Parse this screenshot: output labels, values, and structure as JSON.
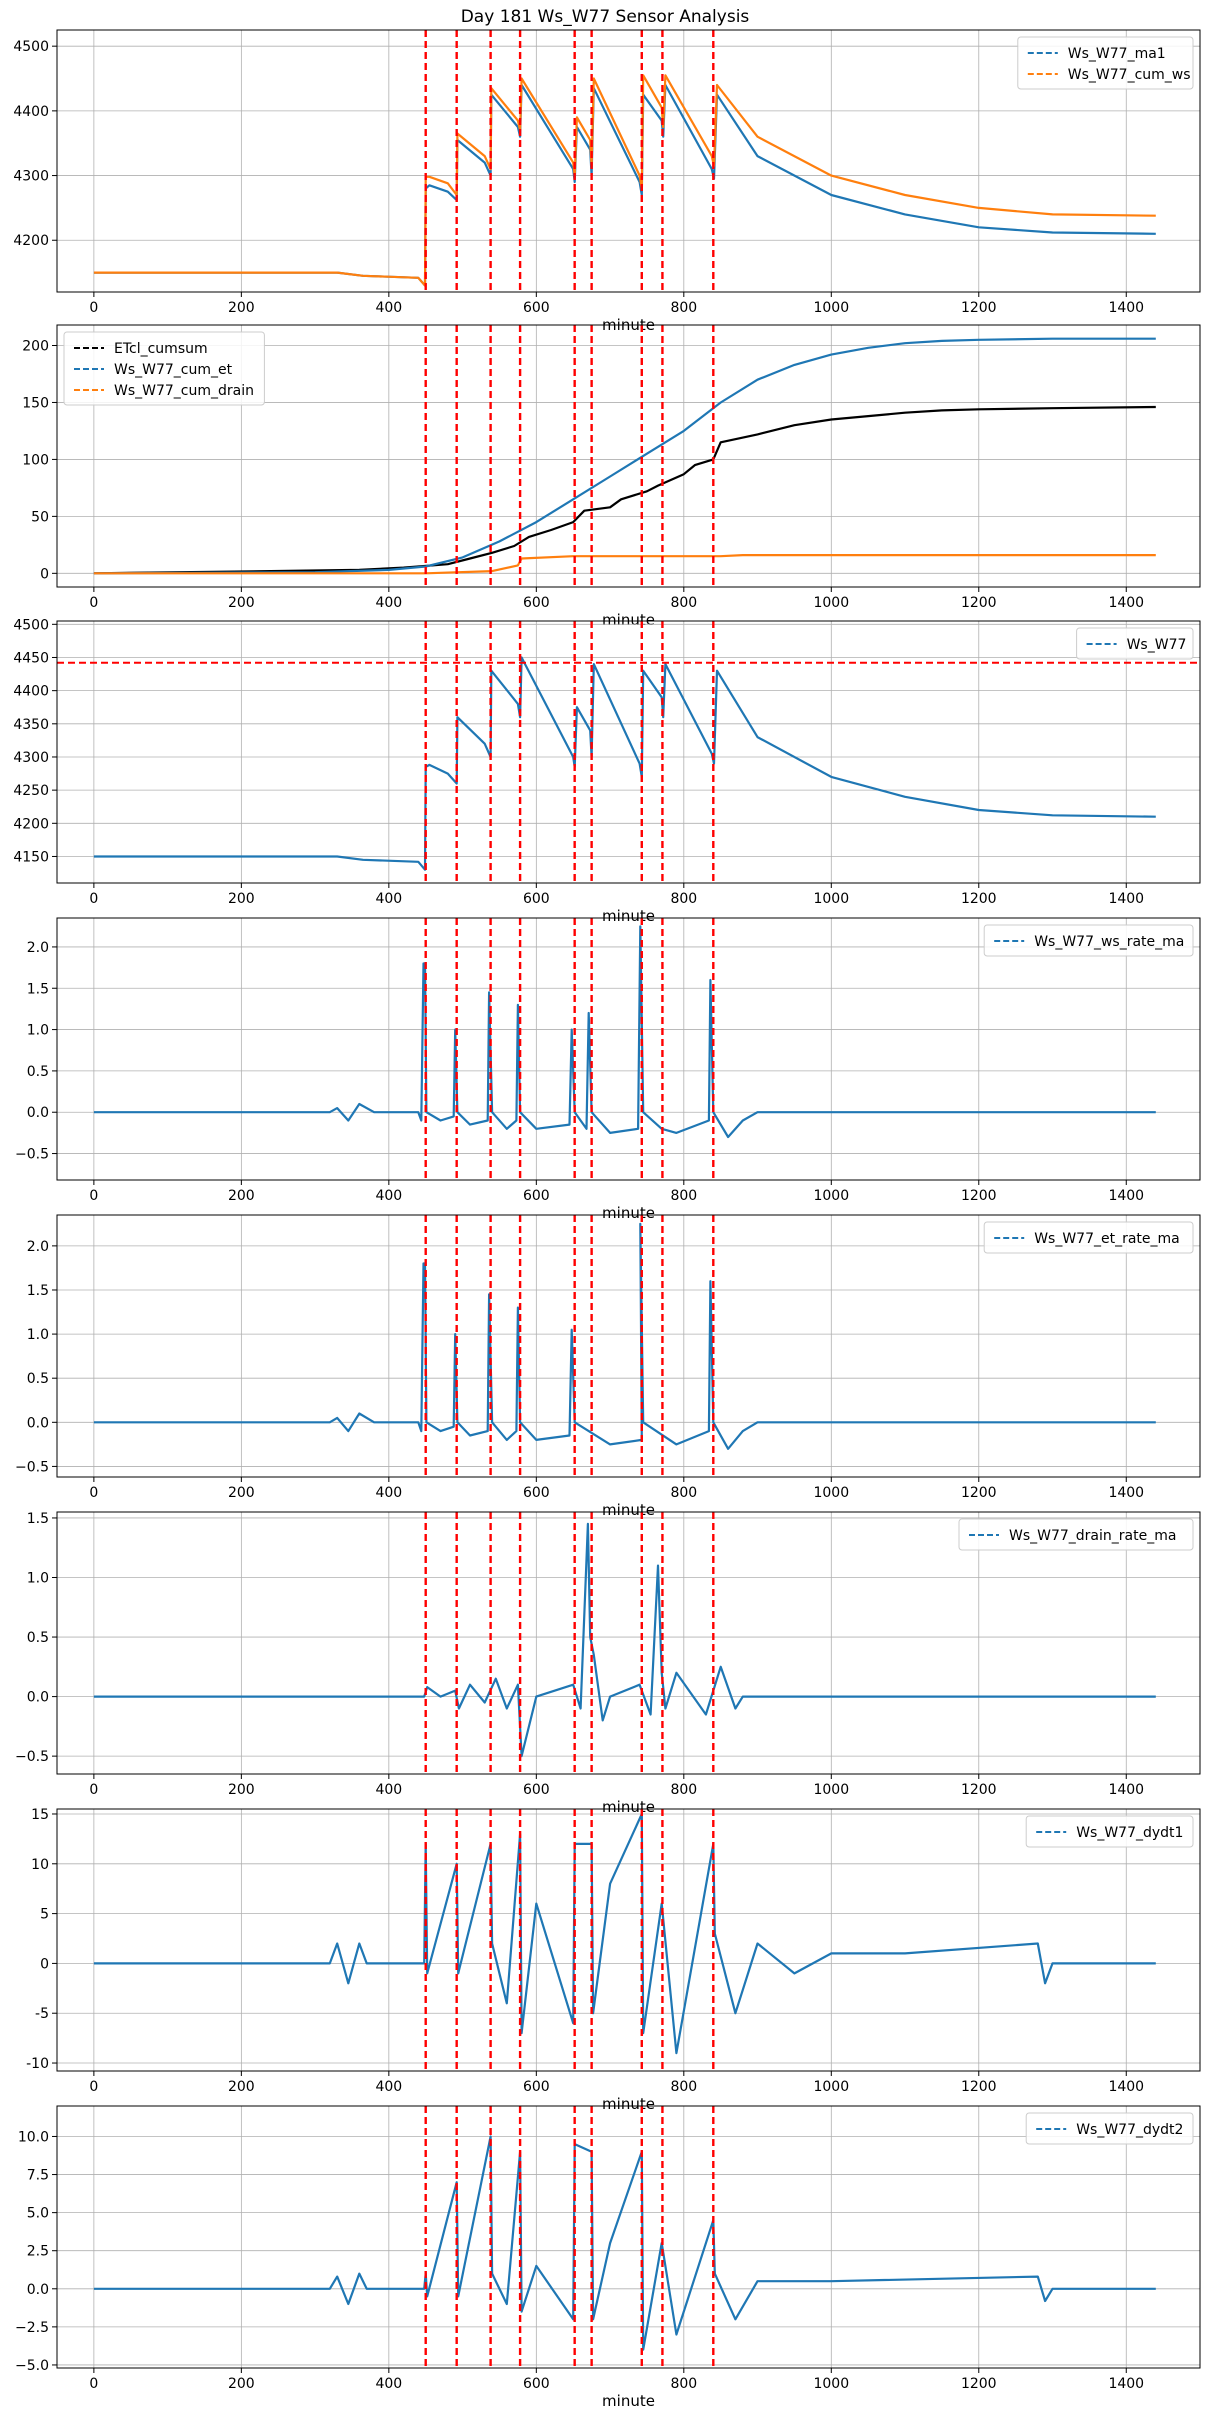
{
  "title": "Day 181 Ws_W77 Sensor Analysis",
  "colors": {
    "blue": "#1f77b4",
    "orange": "#ff7f0e",
    "black": "#000000",
    "red": "#ff0000",
    "grid": "#b0b0b0"
  },
  "chart_data": [
    {
      "type": "line",
      "title": "Day 181 Ws_W77 Sensor Analysis",
      "xlabel": "minute",
      "xlim": [
        -50,
        1500
      ],
      "xticks": [
        0,
        200,
        400,
        600,
        800,
        1000,
        1200,
        1400
      ],
      "ylim": [
        4120,
        4525
      ],
      "yticks": [
        4200,
        4300,
        4400,
        4500
      ],
      "legend": "top-right",
      "vlines": [
        450,
        492,
        538,
        578,
        652,
        675,
        743,
        771,
        840
      ],
      "series": [
        {
          "name": "Ws_W77_ma1",
          "color": "blue",
          "x": [
            0,
            330,
            365,
            440,
            449,
            450,
            455,
            480,
            492,
            493,
            530,
            538,
            539,
            575,
            578,
            580,
            650,
            652,
            655,
            673,
            675,
            678,
            740,
            743,
            745,
            770,
            772,
            775,
            838,
            841,
            845,
            900,
            1000,
            1100,
            1200,
            1300,
            1440
          ],
          "y": [
            4150,
            4150,
            4145,
            4142,
            4130,
            4280,
            4285,
            4275,
            4262,
            4355,
            4320,
            4300,
            4425,
            4375,
            4360,
            4440,
            4310,
            4290,
            4375,
            4340,
            4300,
            4435,
            4290,
            4270,
            4425,
            4385,
            4360,
            4440,
            4310,
            4295,
            4425,
            4330,
            4270,
            4240,
            4220,
            4212,
            4210
          ]
        },
        {
          "name": "Ws_W77_cum_ws",
          "color": "orange",
          "x": [
            0,
            330,
            365,
            440,
            449,
            450,
            455,
            480,
            492,
            493,
            530,
            538,
            539,
            575,
            578,
            580,
            650,
            652,
            655,
            673,
            675,
            678,
            740,
            743,
            745,
            770,
            772,
            775,
            838,
            841,
            845,
            900,
            1000,
            1100,
            1200,
            1300,
            1440
          ],
          "y": [
            4150,
            4150,
            4145,
            4142,
            4130,
            4298,
            4298,
            4288,
            4270,
            4365,
            4330,
            4310,
            4435,
            4385,
            4370,
            4450,
            4320,
            4300,
            4390,
            4355,
            4315,
            4450,
            4300,
            4280,
            4455,
            4405,
            4375,
            4455,
            4330,
            4315,
            4440,
            4360,
            4300,
            4270,
            4250,
            4240,
            4238
          ]
        }
      ]
    },
    {
      "type": "line",
      "xlabel": "minute",
      "xlim": [
        -50,
        1500
      ],
      "xticks": [
        0,
        200,
        400,
        600,
        800,
        1000,
        1200,
        1400
      ],
      "ylim": [
        -12,
        218
      ],
      "yticks": [
        0,
        50,
        100,
        150,
        200
      ],
      "legend": "top-left",
      "vlines": [
        450,
        492,
        538,
        578,
        652,
        675,
        743,
        771,
        840
      ],
      "series": [
        {
          "name": "ETcl_cumsum",
          "color": "black",
          "x": [
            0,
            240,
            360,
            420,
            480,
            510,
            540,
            570,
            590,
            620,
            650,
            665,
            700,
            715,
            750,
            765,
            800,
            815,
            840,
            850,
            900,
            950,
            1000,
            1050,
            1100,
            1150,
            1200,
            1300,
            1440
          ],
          "y": [
            0,
            2,
            3,
            5,
            8,
            13,
            18,
            24,
            32,
            38,
            45,
            55,
            58,
            65,
            72,
            77,
            87,
            95,
            100,
            115,
            122,
            130,
            135,
            138,
            141,
            143,
            144,
            145,
            146
          ]
        },
        {
          "name": "Ws_W77_cum_et",
          "color": "blue",
          "x": [
            0,
            300,
            400,
            450,
            500,
            550,
            600,
            650,
            700,
            750,
            800,
            850,
            900,
            950,
            1000,
            1050,
            1100,
            1150,
            1200,
            1300,
            1440
          ],
          "y": [
            0,
            1,
            3,
            6,
            14,
            28,
            45,
            65,
            85,
            105,
            125,
            150,
            170,
            183,
            192,
            198,
            202,
            204,
            205,
            206,
            206
          ]
        },
        {
          "name": "Ws_W77_cum_drain",
          "color": "orange",
          "x": [
            0,
            450,
            540,
            575,
            580,
            650,
            700,
            770,
            850,
            880,
            1440
          ],
          "y": [
            0,
            0,
            2,
            7,
            13,
            15,
            15,
            15,
            15,
            16,
            16
          ]
        }
      ]
    },
    {
      "type": "line",
      "xlabel": "minute",
      "xlim": [
        -50,
        1500
      ],
      "xticks": [
        0,
        200,
        400,
        600,
        800,
        1000,
        1200,
        1400
      ],
      "ylim": [
        4110,
        4505
      ],
      "yticks": [
        4150,
        4200,
        4250,
        4300,
        4350,
        4400,
        4450,
        4500
      ],
      "legend": "top-right",
      "hline": 4442,
      "vlines": [
        450,
        492,
        538,
        578,
        652,
        675,
        743,
        771,
        840
      ],
      "series": [
        {
          "name": "Ws_W77",
          "color": "blue",
          "x": [
            0,
            330,
            365,
            440,
            449,
            450,
            455,
            480,
            492,
            493,
            530,
            538,
            539,
            575,
            578,
            580,
            650,
            652,
            655,
            673,
            675,
            678,
            740,
            743,
            745,
            770,
            772,
            775,
            838,
            841,
            845,
            900,
            1000,
            1100,
            1200,
            1300,
            1440
          ],
          "y": [
            4150,
            4150,
            4145,
            4142,
            4130,
            4285,
            4288,
            4275,
            4260,
            4360,
            4320,
            4300,
            4430,
            4380,
            4360,
            4450,
            4300,
            4285,
            4375,
            4340,
            4300,
            4440,
            4290,
            4270,
            4430,
            4390,
            4360,
            4440,
            4305,
            4290,
            4430,
            4330,
            4270,
            4240,
            4220,
            4212,
            4210
          ]
        }
      ]
    },
    {
      "type": "line",
      "xlabel": "minute",
      "xlim": [
        -50,
        1500
      ],
      "xticks": [
        0,
        200,
        400,
        600,
        800,
        1000,
        1200,
        1400
      ],
      "ylim": [
        -0.82,
        2.35
      ],
      "yticks": [
        -0.5,
        0.0,
        0.5,
        1.0,
        1.5,
        2.0
      ],
      "legend": "top-right",
      "vlines": [
        450,
        492,
        538,
        578,
        652,
        675,
        743,
        771,
        840
      ],
      "series": [
        {
          "name": "Ws_W77_ws_rate_ma",
          "color": "blue",
          "x": [
            0,
            320,
            330,
            345,
            360,
            380,
            440,
            444,
            447,
            449,
            451,
            470,
            488,
            490,
            493,
            510,
            534,
            536,
            540,
            560,
            573,
            575,
            578,
            600,
            645,
            648,
            652,
            668,
            671,
            675,
            700,
            738,
            741,
            745,
            770,
            790,
            834,
            836,
            840,
            860,
            880,
            900,
            1440
          ],
          "y": [
            0,
            0,
            0.05,
            -0.1,
            0.1,
            0,
            0,
            -0.1,
            1.8,
            1.8,
            0,
            -0.1,
            -0.05,
            1.0,
            0,
            -0.15,
            -0.1,
            1.45,
            0,
            -0.2,
            -0.1,
            1.3,
            0,
            -0.2,
            -0.15,
            1.0,
            0,
            -0.2,
            1.2,
            0,
            -0.25,
            -0.2,
            2.25,
            0,
            -0.2,
            -0.25,
            -0.1,
            1.6,
            0,
            -0.3,
            -0.1,
            0,
            0
          ]
        }
      ]
    },
    {
      "type": "line",
      "xlabel": "minute",
      "xlim": [
        -50,
        1500
      ],
      "xticks": [
        0,
        200,
        400,
        600,
        800,
        1000,
        1200,
        1400
      ],
      "ylim": [
        -0.62,
        2.35
      ],
      "yticks": [
        -0.5,
        0.0,
        0.5,
        1.0,
        1.5,
        2.0
      ],
      "legend": "top-right",
      "vlines": [
        450,
        492,
        538,
        578,
        652,
        675,
        743,
        771,
        840
      ],
      "series": [
        {
          "name": "Ws_W77_et_rate_ma",
          "color": "blue",
          "x": [
            0,
            320,
            330,
            345,
            360,
            380,
            440,
            444,
            447,
            449,
            451,
            470,
            488,
            490,
            493,
            510,
            534,
            536,
            540,
            560,
            573,
            575,
            578,
            600,
            645,
            648,
            652,
            700,
            743,
            741,
            745,
            790,
            834,
            836,
            840,
            860,
            880,
            900,
            1440
          ],
          "y": [
            0,
            0,
            0.05,
            -0.1,
            0.1,
            0,
            0,
            -0.1,
            1.8,
            1.8,
            0,
            -0.1,
            -0.05,
            1.0,
            0,
            -0.15,
            -0.1,
            1.45,
            0,
            -0.2,
            -0.1,
            1.3,
            0,
            -0.2,
            -0.15,
            1.05,
            0,
            -0.25,
            -0.2,
            2.25,
            0,
            -0.25,
            -0.1,
            1.6,
            0,
            -0.3,
            -0.1,
            0,
            0
          ]
        }
      ]
    },
    {
      "type": "line",
      "xlabel": "minute",
      "xlim": [
        -50,
        1500
      ],
      "xticks": [
        0,
        200,
        400,
        600,
        800,
        1000,
        1200,
        1400
      ],
      "ylim": [
        -0.65,
        1.55
      ],
      "yticks": [
        -0.5,
        0.0,
        0.5,
        1.0,
        1.5
      ],
      "legend": "top-right",
      "vlines": [
        450,
        492,
        538,
        578,
        652,
        675,
        743,
        771,
        840
      ],
      "series": [
        {
          "name": "Ws_W77_drain_rate_ma",
          "color": "blue",
          "x": [
            0,
            448,
            452,
            470,
            490,
            495,
            510,
            530,
            545,
            560,
            575,
            580,
            600,
            650,
            660,
            670,
            673,
            678,
            690,
            700,
            740,
            755,
            765,
            770,
            775,
            790,
            830,
            850,
            870,
            880,
            1440
          ],
          "y": [
            0,
            0,
            0.08,
            0,
            0.05,
            -0.1,
            0.1,
            -0.05,
            0.15,
            -0.1,
            0.1,
            -0.5,
            0,
            0.1,
            -0.1,
            1.45,
            0.5,
            0.35,
            -0.2,
            0,
            0.1,
            -0.15,
            1.1,
            0.2,
            -0.1,
            0.2,
            -0.15,
            0.25,
            -0.1,
            0,
            0
          ]
        }
      ]
    },
    {
      "type": "line",
      "xlabel": "minute",
      "xlim": [
        -50,
        1500
      ],
      "xticks": [
        0,
        200,
        400,
        600,
        800,
        1000,
        1200,
        1400
      ],
      "ylim": [
        -10.8,
        15.5
      ],
      "yticks": [
        -10,
        -5,
        0,
        5,
        10,
        15
      ],
      "legend": "top-right",
      "vlines": [
        450,
        492,
        538,
        578,
        652,
        675,
        743,
        771,
        840
      ],
      "series": [
        {
          "name": "Ws_W77_dydt1",
          "color": "blue",
          "x": [
            0,
            320,
            330,
            345,
            360,
            370,
            448,
            450,
            452,
            492,
            494,
            538,
            540,
            560,
            578,
            580,
            600,
            650,
            652,
            675,
            677,
            700,
            743,
            745,
            770,
            790,
            840,
            842,
            870,
            900,
            950,
            1000,
            1100,
            1280,
            1290,
            1300,
            1440
          ],
          "y": [
            0,
            0,
            2,
            -2,
            2,
            0,
            0,
            12,
            -1,
            10,
            -1,
            12,
            2,
            -4,
            13,
            -7,
            6,
            -6,
            12,
            12,
            -5,
            8,
            15,
            -7,
            6,
            -9,
            12,
            3,
            -5,
            2,
            -1,
            1,
            1,
            2,
            -2,
            0,
            0
          ]
        }
      ]
    },
    {
      "type": "line",
      "xlabel": "minute",
      "xlim": [
        -50,
        1500
      ],
      "xticks": [
        0,
        200,
        400,
        600,
        800,
        1000,
        1200,
        1400
      ],
      "ylim": [
        -5.2,
        12.0
      ],
      "yticks": [
        -5.0,
        -2.5,
        0.0,
        2.5,
        5.0,
        7.5,
        10.0
      ],
      "legend": "top-right",
      "vlines": [
        450,
        492,
        538,
        578,
        652,
        675,
        743,
        771,
        840
      ],
      "series": [
        {
          "name": "Ws_W77_dydt2",
          "color": "blue",
          "x": [
            0,
            320,
            330,
            345,
            360,
            370,
            448,
            450,
            452,
            492,
            494,
            538,
            540,
            560,
            578,
            580,
            600,
            650,
            652,
            675,
            677,
            700,
            743,
            745,
            770,
            790,
            840,
            842,
            870,
            900,
            1000,
            1280,
            1290,
            1300,
            1440
          ],
          "y": [
            0,
            0,
            0.8,
            -1,
            1,
            0,
            0,
            1,
            -0.5,
            7,
            -0.5,
            10,
            1,
            -1,
            9,
            -1.5,
            1.5,
            -2,
            9.5,
            9,
            -2,
            3,
            9,
            -4,
            3,
            -3,
            4.5,
            1,
            -2,
            0.5,
            0.5,
            0.8,
            -0.8,
            0,
            0
          ]
        }
      ]
    }
  ]
}
